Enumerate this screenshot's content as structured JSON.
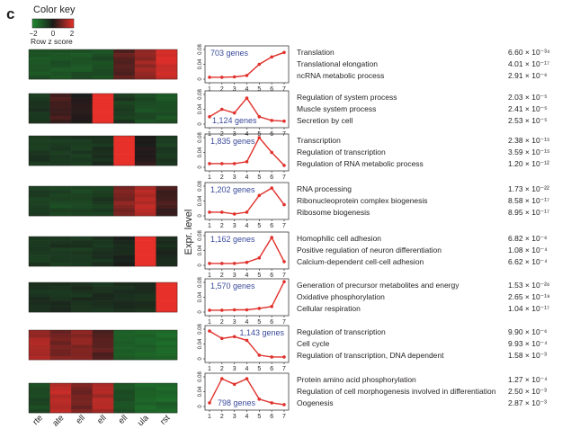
{
  "panel_label": "c",
  "color_key": {
    "title": "Color key",
    "ticks": [
      "−2",
      "0",
      "2"
    ],
    "label": "Row z score",
    "low_color": "#1f8a2f",
    "mid_color": "#1a1a1a",
    "high_color": "#e8302a"
  },
  "y_axis_label": "Expr. level",
  "heatmap": {
    "column_labels": [
      "rte",
      "ate",
      "ell",
      "ell",
      "ell",
      "ula",
      "rst"
    ],
    "rows": [
      [
        -1.0,
        -1.0,
        -1.0,
        -0.9,
        0.6,
        1.2,
        1.8
      ],
      [
        -0.5,
        0.4,
        0.0,
        2.4,
        -0.6,
        -0.9,
        -1.0
      ],
      [
        -0.5,
        -0.5,
        -0.5,
        -0.4,
        2.4,
        0.1,
        -0.6
      ],
      [
        -0.7,
        -0.8,
        -0.8,
        -0.6,
        1.0,
        1.5,
        0.4
      ],
      [
        -0.5,
        -0.5,
        -0.5,
        -0.5,
        -0.2,
        2.4,
        -0.3
      ],
      [
        -0.4,
        -0.4,
        -0.4,
        -0.4,
        -0.3,
        -0.3,
        2.4
      ],
      [
        1.3,
        0.9,
        1.1,
        0.6,
        -1.1,
        -1.3,
        -1.4
      ],
      [
        -0.8,
        1.6,
        0.9,
        1.4,
        -1.0,
        -1.3,
        -1.3
      ]
    ]
  },
  "chart_data": {
    "type": "line",
    "x": [
      1,
      2,
      3,
      4,
      5,
      6,
      7
    ],
    "ylim": [
      0,
      0.08
    ],
    "yticks": [
      "0",
      "0.04",
      "0.08"
    ],
    "series": [
      {
        "genes_label": "703 genes",
        "label_pos": "top-left",
        "values": [
          0.005,
          0.005,
          0.006,
          0.01,
          0.04,
          0.06,
          0.072
        ],
        "terms": [
          {
            "name": "Translation",
            "p": "6.60 × 10⁻³⁴"
          },
          {
            "name": "Translational elongation",
            "p": "4.01 × 10⁻¹⁷"
          },
          {
            "name": "ncRNA metabolic process",
            "p": "2.91 × 10⁻⁶"
          }
        ]
      },
      {
        "genes_label": "1,124 genes",
        "label_pos": "bottom-left",
        "values": [
          0.02,
          0.04,
          0.03,
          0.07,
          0.02,
          0.01,
          0.008
        ],
        "terms": [
          {
            "name": "Regulation of system process",
            "p": "2.03 × 10⁻⁵"
          },
          {
            "name": "Muscle system process",
            "p": "2.41 × 10⁻⁵"
          },
          {
            "name": "Secretion by cell",
            "p": "2.53 × 10⁻⁵"
          }
        ]
      },
      {
        "genes_label": "1,835 genes",
        "label_pos": "top-left",
        "values": [
          0.01,
          0.01,
          0.01,
          0.015,
          0.08,
          0.04,
          0.005
        ],
        "terms": [
          {
            "name": "Transcription",
            "p": "2.38 × 10⁻¹⁵"
          },
          {
            "name": "Regulation of transcription",
            "p": "3.59 × 10⁻¹⁵"
          },
          {
            "name": "Regulation of RNA metabolic process",
            "p": "1.20 × 10⁻¹²"
          }
        ]
      },
      {
        "genes_label": "1,202 genes",
        "label_pos": "top-left",
        "values": [
          0.01,
          0.01,
          0.005,
          0.01,
          0.055,
          0.075,
          0.03
        ],
        "terms": [
          {
            "name": "RNA processing",
            "p": "1.73 × 10⁻²²"
          },
          {
            "name": "Ribonucleoprotein complex biogenesis",
            "p": "8.58 × 10⁻¹⁷"
          },
          {
            "name": "Ribosome biogenesis",
            "p": "8.95 × 10⁻¹⁷"
          }
        ]
      },
      {
        "genes_label": "1,162 genes",
        "label_pos": "top-left",
        "values": [
          0.005,
          0.005,
          0.005,
          0.008,
          0.02,
          0.075,
          0.01
        ],
        "terms": [
          {
            "name": "Homophilic cell adhesion",
            "p": "6.82 × 10⁻⁶"
          },
          {
            "name": "Positive regulation of neuron differentiation",
            "p": "1.08 × 10⁻⁴"
          },
          {
            "name": "Calcium-dependent cell-cell adhesion",
            "p": "6.62 × 10⁻⁴"
          }
        ]
      },
      {
        "genes_label": "1,570 genes",
        "label_pos": "top-left",
        "values": [
          0.005,
          0.005,
          0.006,
          0.006,
          0.01,
          0.015,
          0.082
        ],
        "terms": [
          {
            "name": "Generation of precursor metabolites and energy",
            "p": "1.53 × 10⁻²⁶"
          },
          {
            "name": "Oxidative phosphorylation",
            "p": "2.65 × 10⁻¹⁹"
          },
          {
            "name": "Cellular respiration",
            "p": "1.04 × 10⁻¹⁷"
          }
        ]
      },
      {
        "genes_label": "1,143 genes",
        "label_pos": "top-right",
        "values": [
          0.075,
          0.055,
          0.06,
          0.05,
          0.01,
          0.005,
          0.005
        ],
        "terms": [
          {
            "name": "Regulation of transcription",
            "p": "9.90 × 10⁻⁶"
          },
          {
            "name": "Cell cycle",
            "p": "9.93 × 10⁻⁴"
          },
          {
            "name": "Regulation of transcription, DNA dependent",
            "p": "1.58 × 10⁻³"
          }
        ]
      },
      {
        "genes_label": "798 genes",
        "label_pos": "bottom-center",
        "values": [
          0.01,
          0.075,
          0.06,
          0.075,
          0.02,
          0.01,
          0.005
        ],
        "terms": [
          {
            "name": "Protein amino acid phosphorylation",
            "p": "1.27 × 10⁻⁴"
          },
          {
            "name": "Regulation of cell morphogenesis involved in differentiation",
            "p": "2.50 × 10⁻³"
          },
          {
            "name": "Oogenesis",
            "p": "2.87 × 10⁻³"
          }
        ]
      }
    ]
  }
}
